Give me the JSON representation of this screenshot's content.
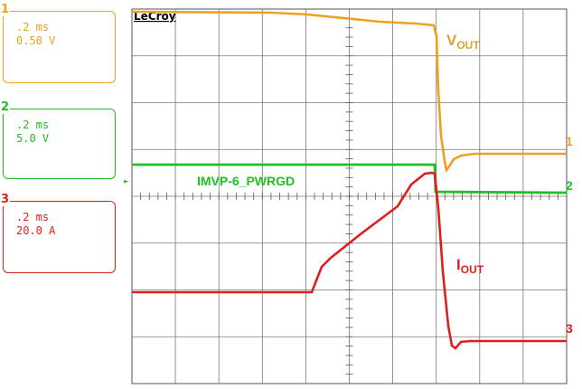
{
  "brand": "LeCroy",
  "channels": [
    {
      "id": "1",
      "timebase": ".2 ms",
      "scale": "0.50 V",
      "color": "#f0a020"
    },
    {
      "id": "2",
      "timebase": ".2 ms",
      "scale": "5.0 V",
      "color": "#20c020"
    },
    {
      "id": "3",
      "timebase": ".2 ms",
      "scale": "20.0 A",
      "color": "#dc2020"
    }
  ],
  "labels": {
    "vout_main": "V",
    "vout_sub": "OUT",
    "pwrgd": "IMVP-6_PWRGD",
    "iout_main": "I",
    "iout_sub": "OUT"
  },
  "markers": {
    "ch1": "1",
    "ch2": "2",
    "ch3": "3"
  }
}
